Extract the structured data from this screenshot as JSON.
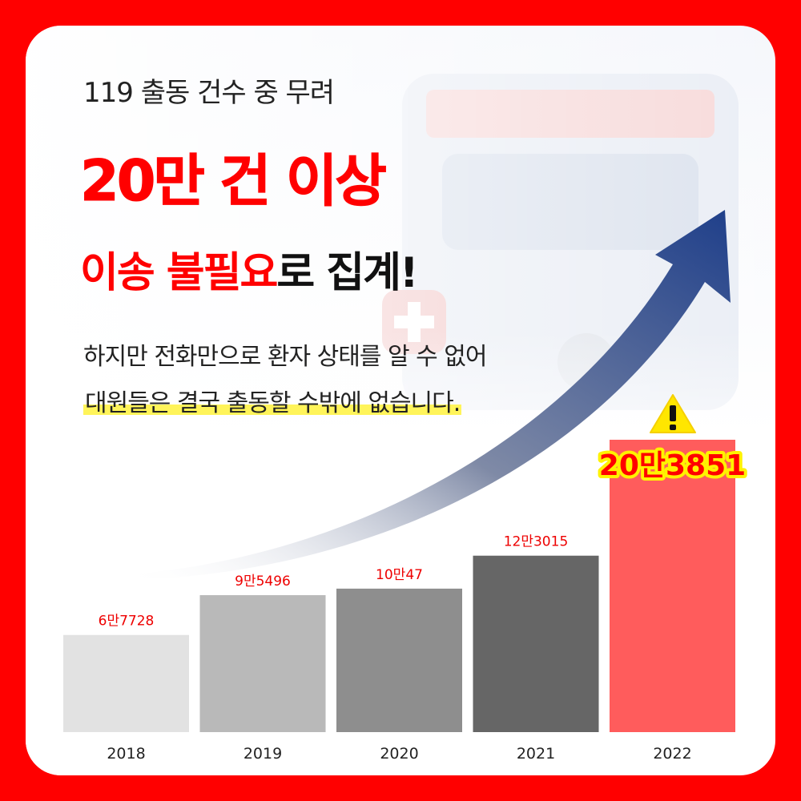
{
  "texts": {
    "subtitle": "119 출동 건수 중 무려",
    "headline": "20만 건 이상",
    "headline2_red": "이송 불필요",
    "headline2_dark": "로 집계!",
    "body_line1": "하지만 전화만으로 환자 상태를 알 수 없어",
    "body_line2": "대원들은 결국 출동할 수밖에 없습니다."
  },
  "icons": {
    "warning": "warning-triangle-icon",
    "arrow": "trend-up-arrow-icon"
  },
  "colors": {
    "frame": "#ff0000",
    "accent": "#ff0000",
    "highlight_bar": "#ff5c5c",
    "label_highlight": "#fff200"
  },
  "chart_data": {
    "type": "bar",
    "categories": [
      "2018",
      "2019",
      "2020",
      "2021",
      "2022"
    ],
    "values": [
      67728,
      95496,
      100047,
      123015,
      203851
    ],
    "value_labels": [
      "6만7728",
      "9만5496",
      "10만47",
      "12만3015",
      "20만3851"
    ],
    "bar_colors": [
      "#e2e2e2",
      "#b9b9b9",
      "#8e8e8e",
      "#666666",
      "#ff5c5c"
    ],
    "highlight_index": 4,
    "title": "",
    "xlabel": "",
    "ylabel": ""
  }
}
